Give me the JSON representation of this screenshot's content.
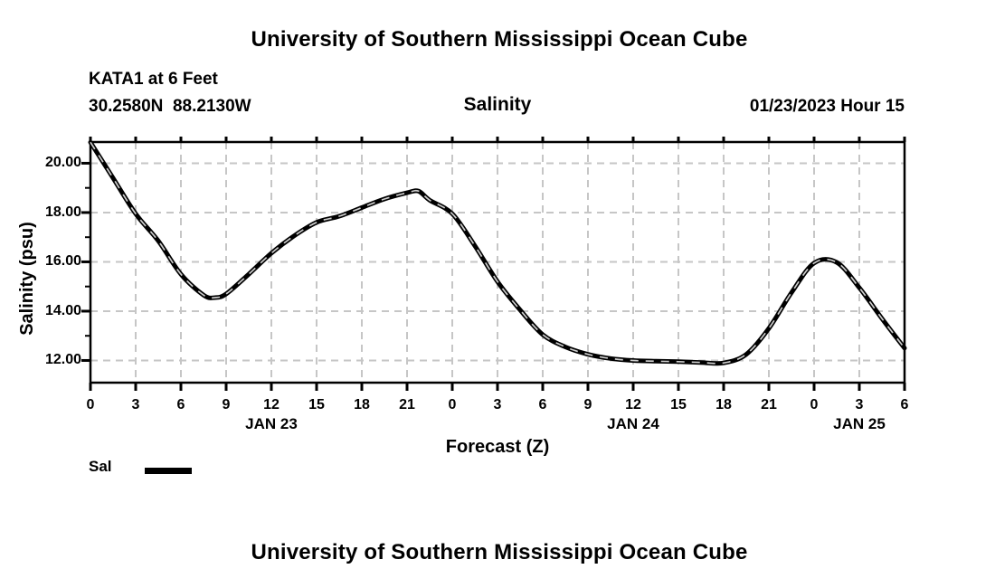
{
  "header": {
    "title": "University of Southern Mississippi Ocean Cube",
    "station_line1": "KATA1 at 6 Feet",
    "station_coords": "30.2580N  88.2130W",
    "chart_title": "Salinity",
    "datetime": "01/23/2023 Hour 15"
  },
  "footer": {
    "title": "University of Southern Mississippi Ocean Cube"
  },
  "colors": {
    "text": "#000000",
    "line": "#000000",
    "grid": "#c6c6c6",
    "dash_overlay": "#cccccc",
    "background": "#ffffff"
  },
  "chart_data": {
    "type": "line",
    "title": "Salinity",
    "xlabel": "Forecast (Z)",
    "ylabel": "Salinity (psu)",
    "xlim": [
      0,
      54
    ],
    "ylim": [
      11.1,
      20.86
    ],
    "grid": true,
    "grid_style": "dashed",
    "xticks": [
      {
        "hour": 0,
        "label": "0"
      },
      {
        "hour": 3,
        "label": "3"
      },
      {
        "hour": 6,
        "label": "6"
      },
      {
        "hour": 9,
        "label": "9"
      },
      {
        "hour": 12,
        "label": "12"
      },
      {
        "hour": 15,
        "label": "15"
      },
      {
        "hour": 18,
        "label": "18"
      },
      {
        "hour": 21,
        "label": "21"
      },
      {
        "hour": 24,
        "label": "0"
      },
      {
        "hour": 27,
        "label": "3"
      },
      {
        "hour": 30,
        "label": "6"
      },
      {
        "hour": 33,
        "label": "9"
      },
      {
        "hour": 36,
        "label": "12"
      },
      {
        "hour": 39,
        "label": "15"
      },
      {
        "hour": 42,
        "label": "18"
      },
      {
        "hour": 45,
        "label": "21"
      },
      {
        "hour": 48,
        "label": "0"
      },
      {
        "hour": 51,
        "label": "3"
      },
      {
        "hour": 54,
        "label": "6"
      }
    ],
    "day_labels": [
      {
        "hour": 12,
        "label": "JAN 23"
      },
      {
        "hour": 36,
        "label": "JAN 24"
      },
      {
        "hour": 51,
        "label": "JAN 25"
      }
    ],
    "yticks": [
      {
        "value": 20,
        "label": "20.00"
      },
      {
        "value": 18,
        "label": "18.00"
      },
      {
        "value": 16,
        "label": "16.00"
      },
      {
        "value": 14,
        "label": "14.00"
      },
      {
        "value": 12,
        "label": "12.00"
      }
    ],
    "y_minor_ticks": [
      13,
      15,
      17,
      19
    ],
    "legend": {
      "position": "bottom-left",
      "entries": [
        {
          "label": "Sal",
          "color": "#000000"
        }
      ]
    },
    "series": [
      {
        "name": "Sal",
        "hours": [
          0,
          1.5,
          3,
          4.5,
          6,
          7.5,
          8.25,
          9,
          10.5,
          12,
          13.5,
          15,
          16.5,
          18,
          19.5,
          21,
          21.75,
          22.5,
          24,
          25.5,
          27,
          28.5,
          30,
          31.5,
          33,
          34.5,
          36,
          37.5,
          39,
          40.5,
          42,
          43.5,
          45,
          46.5,
          48,
          49.5,
          51,
          52.5,
          54
        ],
        "values": [
          20.85,
          19.4,
          17.95,
          16.85,
          15.5,
          14.65,
          14.55,
          14.7,
          15.5,
          16.35,
          17.05,
          17.6,
          17.85,
          18.2,
          18.55,
          18.8,
          18.87,
          18.5,
          17.95,
          16.65,
          15.2,
          14.05,
          13.05,
          12.55,
          12.25,
          12.08,
          12.0,
          11.97,
          11.95,
          11.92,
          11.9,
          12.25,
          13.3,
          14.75,
          15.95,
          15.98,
          14.95,
          13.7,
          12.5
        ]
      }
    ]
  }
}
